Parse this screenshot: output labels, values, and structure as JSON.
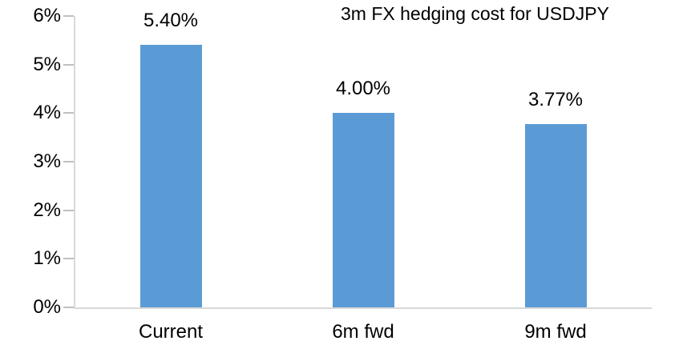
{
  "chart_data": {
    "type": "bar",
    "title": "3m FX hedging cost for USDJPY",
    "categories": [
      "Current",
      "6m fwd",
      "9m fwd"
    ],
    "values": [
      5.4,
      4.0,
      3.77
    ],
    "data_labels": [
      "5.40%",
      "4.00%",
      "3.77%"
    ],
    "y_ticks": [
      "0%",
      "1%",
      "2%",
      "3%",
      "4%",
      "5%",
      "6%"
    ],
    "ylim": [
      0,
      6
    ],
    "y_tick_step": 1,
    "xlabel": "",
    "ylabel": "",
    "grid": false,
    "legend": false,
    "colors": {
      "bar": "#5B9BD5",
      "axis_line": "#D9D9D9",
      "tick_mark": "#BFBFBF",
      "text": "#000000",
      "background": "#FFFFFF"
    }
  }
}
